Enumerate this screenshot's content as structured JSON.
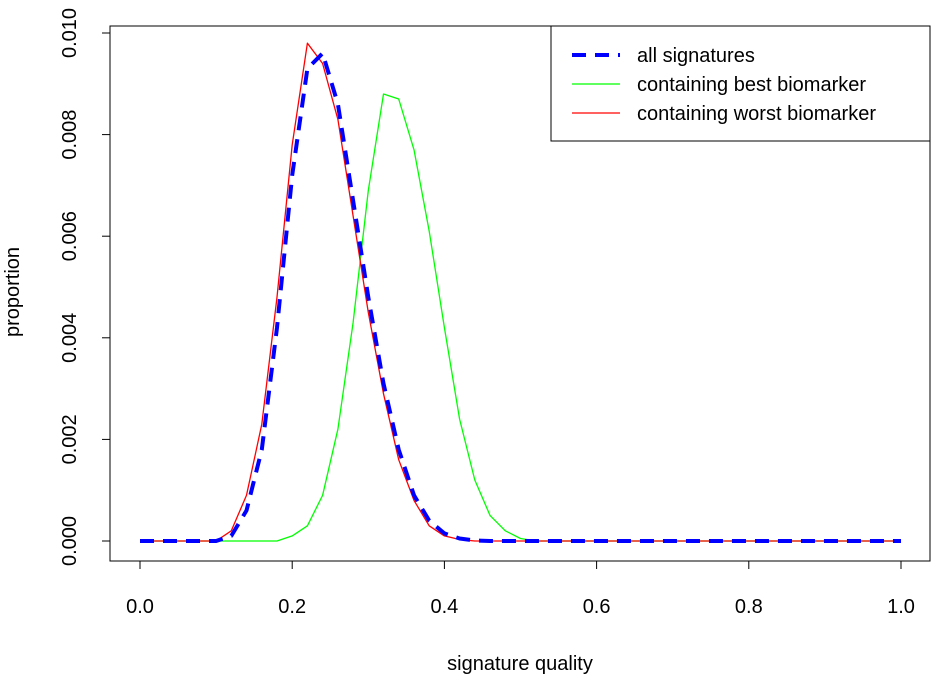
{
  "chart_data": {
    "type": "line",
    "title": "",
    "xlabel": "signature quality",
    "ylabel": "proportion",
    "xlim": [
      0.0,
      1.0
    ],
    "ylim": [
      0.0,
      0.01
    ],
    "x_ticks": [
      "0.0",
      "0.2",
      "0.4",
      "0.6",
      "0.8",
      "1.0"
    ],
    "y_ticks": [
      "0.000",
      "0.002",
      "0.004",
      "0.006",
      "0.008",
      "0.010"
    ],
    "grid": false,
    "legend_position": "top-right",
    "series": [
      {
        "name": "all signatures",
        "color": "#0000ff",
        "style": "dashed",
        "x": [
          0.0,
          0.1,
          0.12,
          0.14,
          0.16,
          0.18,
          0.2,
          0.22,
          0.24,
          0.26,
          0.28,
          0.3,
          0.32,
          0.34,
          0.36,
          0.38,
          0.4,
          0.42,
          0.44,
          0.46,
          0.5,
          0.6,
          0.8,
          1.0
        ],
        "y": [
          0.0,
          0.0,
          0.0001,
          0.0006,
          0.0018,
          0.0042,
          0.0072,
          0.0093,
          0.0096,
          0.0086,
          0.0067,
          0.0048,
          0.0031,
          0.0018,
          0.0009,
          0.0004,
          0.00015,
          5e-05,
          1e-05,
          0.0,
          0.0,
          0.0,
          0.0,
          0.0
        ]
      },
      {
        "name": "containing best biomarker",
        "color": "#00ff00",
        "style": "solid",
        "x": [
          0.0,
          0.18,
          0.2,
          0.22,
          0.24,
          0.26,
          0.28,
          0.3,
          0.32,
          0.34,
          0.36,
          0.38,
          0.4,
          0.42,
          0.44,
          0.46,
          0.48,
          0.5,
          0.52,
          0.6,
          0.8,
          1.0
        ],
        "y": [
          0.0,
          0.0,
          0.0001,
          0.0003,
          0.0009,
          0.0022,
          0.0043,
          0.0069,
          0.0088,
          0.0087,
          0.0077,
          0.0061,
          0.0042,
          0.0024,
          0.0012,
          0.0005,
          0.0002,
          5e-05,
          0.0,
          0.0,
          0.0,
          0.0
        ]
      },
      {
        "name": "containing worst biomarker",
        "color": "#ff0000",
        "style": "solid",
        "x": [
          0.0,
          0.1,
          0.12,
          0.14,
          0.16,
          0.18,
          0.2,
          0.22,
          0.24,
          0.26,
          0.28,
          0.3,
          0.32,
          0.34,
          0.36,
          0.38,
          0.4,
          0.42,
          0.44,
          0.46,
          0.5,
          0.6,
          0.8,
          1.0
        ],
        "y": [
          0.0,
          0.0,
          0.0002,
          0.0009,
          0.0023,
          0.0048,
          0.0078,
          0.0098,
          0.0094,
          0.0083,
          0.0064,
          0.0045,
          0.0029,
          0.0016,
          0.0008,
          0.0003,
          0.0001,
          3e-05,
          0.0,
          0.0,
          0.0,
          0.0,
          0.0,
          0.0
        ]
      }
    ]
  }
}
